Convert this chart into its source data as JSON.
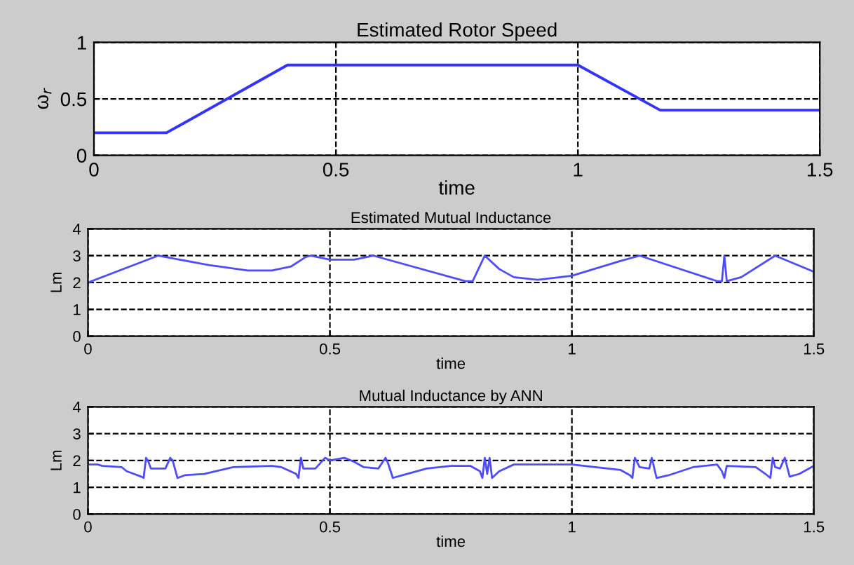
{
  "chart_data": [
    {
      "type": "line",
      "title": "Estimated Rotor Speed",
      "xlabel": "time",
      "ylabel": "ω$_{r}$",
      "xlim": [
        0,
        1.5
      ],
      "ylim": [
        0,
        1
      ],
      "xticks": [
        0,
        0.5,
        1,
        1.5
      ],
      "yticks": [
        0,
        0.5,
        1
      ],
      "grid": true,
      "line_style": "solid",
      "series": [
        {
          "color": "#3333ff",
          "x": [
            0,
            0.15,
            0.4,
            1.0,
            1.17,
            1.5
          ],
          "values": [
            0.2,
            0.2,
            0.8,
            0.8,
            0.4,
            0.4
          ]
        }
      ]
    },
    {
      "type": "line",
      "title": "Estimated Mutual Inductance",
      "xlabel": "time",
      "ylabel": "Lm",
      "xlim": [
        0,
        1.5
      ],
      "ylim": [
        0,
        4
      ],
      "xticks": [
        0,
        0.5,
        1,
        1.5
      ],
      "yticks": [
        0,
        1,
        2,
        3,
        4
      ],
      "grid": true,
      "line_style": "solid",
      "series": [
        {
          "color": "#4d4dff",
          "x": [
            0,
            0.145,
            0.25,
            0.33,
            0.38,
            0.42,
            0.45,
            0.46,
            0.5,
            0.55,
            0.59,
            0.78,
            0.795,
            0.82,
            0.85,
            0.88,
            0.93,
            1.0,
            1.1,
            1.14,
            1.3,
            1.31,
            1.315,
            1.32,
            1.35,
            1.42,
            1.5
          ],
          "values": [
            2.0,
            3.0,
            2.65,
            2.45,
            2.45,
            2.6,
            2.95,
            3.0,
            2.85,
            2.85,
            3.0,
            2.05,
            2.05,
            3.0,
            2.5,
            2.2,
            2.1,
            2.25,
            2.8,
            3.0,
            2.05,
            2.05,
            3.0,
            2.05,
            2.2,
            3.0,
            2.4
          ]
        }
      ]
    },
    {
      "type": "line",
      "title": "Mutual Inductance by ANN",
      "xlabel": "time",
      "ylabel": "Lm",
      "xlim": [
        0,
        1.5
      ],
      "ylim": [
        0,
        4
      ],
      "xticks": [
        0,
        0.5,
        1,
        1.5
      ],
      "yticks": [
        0,
        1,
        2,
        3,
        4
      ],
      "grid": true,
      "line_style": "solid",
      "series": [
        {
          "color": "#4d4dff",
          "x": [
            0,
            0.02,
            0.03,
            0.07,
            0.08,
            0.11,
            0.115,
            0.12,
            0.125,
            0.13,
            0.16,
            0.17,
            0.175,
            0.185,
            0.2,
            0.24,
            0.3,
            0.38,
            0.4,
            0.43,
            0.435,
            0.44,
            0.445,
            0.47,
            0.49,
            0.5,
            0.53,
            0.55,
            0.57,
            0.6,
            0.615,
            0.62,
            0.63,
            0.65,
            0.7,
            0.75,
            0.79,
            0.81,
            0.815,
            0.82,
            0.825,
            0.83,
            0.835,
            0.85,
            0.88,
            1.0,
            1.1,
            1.12,
            1.125,
            1.13,
            1.14,
            1.16,
            1.165,
            1.175,
            1.2,
            1.25,
            1.3,
            1.31,
            1.315,
            1.32,
            1.38,
            1.4,
            1.41,
            1.415,
            1.42,
            1.43,
            1.44,
            1.45,
            1.47,
            1.5
          ],
          "values": [
            1.85,
            1.85,
            1.8,
            1.75,
            1.6,
            1.4,
            1.35,
            2.1,
            1.95,
            1.7,
            1.7,
            2.1,
            2.0,
            1.35,
            1.45,
            1.5,
            1.75,
            1.8,
            1.75,
            1.5,
            1.35,
            2.1,
            1.7,
            1.7,
            2.1,
            2.0,
            2.1,
            1.95,
            1.75,
            1.7,
            2.1,
            1.9,
            1.35,
            1.45,
            1.7,
            1.8,
            1.8,
            1.6,
            1.35,
            2.1,
            1.5,
            2.1,
            1.35,
            1.6,
            1.85,
            1.85,
            1.65,
            1.45,
            1.35,
            2.1,
            1.75,
            1.7,
            2.1,
            1.35,
            1.45,
            1.75,
            1.85,
            1.6,
            1.35,
            1.8,
            1.75,
            1.5,
            1.35,
            2.1,
            1.75,
            1.7,
            2.1,
            1.4,
            1.5,
            1.8
          ]
        }
      ]
    }
  ]
}
